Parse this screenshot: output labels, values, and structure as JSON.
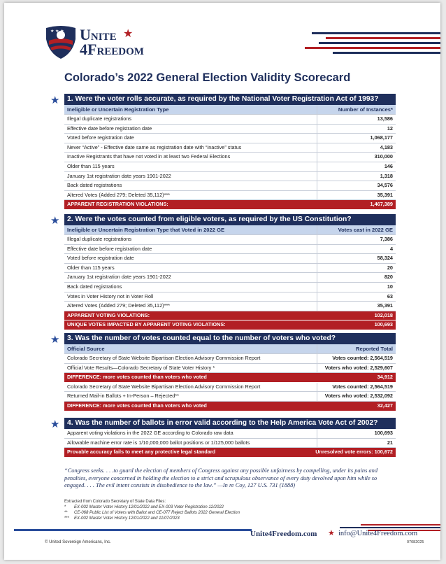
{
  "header": {
    "logo_line1": "Unite",
    "logo_line2": "4Freedom",
    "title": "Colorado’s 2022 General Election Validity Scorecard"
  },
  "sections": [
    {
      "question": "1. Were the voter rolls accurate, as required by the National Voter Registration Act of 1993?",
      "columns": [
        "Ineligible or Uncertain Registration Type",
        "Number of Instances*"
      ],
      "groups": [
        {
          "rows": [
            [
              "Illegal duplicate registrations",
              "13,586"
            ],
            [
              "Effective date before registration date",
              "12"
            ],
            [
              "Voted before registration date",
              "1,068,177"
            ],
            [
              "Never “Active” - Effective date same as registration date with “Inactive” status",
              "4,183"
            ],
            [
              "Inactive Registrants that have not voted in at least two Federal Elections",
              "310,000"
            ],
            [
              "Older than 115 years",
              "146"
            ],
            [
              "January 1st registration date years 1901-2022",
              "1,318"
            ],
            [
              "Back dated registrations",
              "34,576"
            ],
            [
              "Altered Votes (Added 279; Deleted 35,112)***",
              "35,391"
            ]
          ],
          "totals": [
            [
              "APPARENT REGISTRATION VIOLATIONS:",
              "1,467,389"
            ]
          ]
        }
      ]
    },
    {
      "question": "2. Were the votes counted from eligible voters, as required by the US Constitution?",
      "columns": [
        "Ineligible or Uncertain Registration Type that Voted in 2022 GE",
        "Votes cast in 2022 GE"
      ],
      "groups": [
        {
          "rows": [
            [
              "Illegal duplicate registrations",
              "7,386"
            ],
            [
              "Effective date before registration date",
              "4"
            ],
            [
              "Voted before registration date",
              "58,324"
            ],
            [
              "Older than 115 years",
              "20"
            ],
            [
              "January 1st registration date years 1901-2022",
              "820"
            ],
            [
              "Back dated registrations",
              "10"
            ],
            [
              "Votes in Voter History not in Voter Roll",
              "63"
            ],
            [
              "Altered Votes (Added 279; Deleted 35,112)***",
              "35,391"
            ]
          ],
          "totals": [
            [
              "APPARENT VOTING VIOLATIONS:",
              "102,018"
            ],
            [
              "UNIQUE VOTES IMPACTED BY APPARENT VOTING VIOLATIONS:",
              "100,693"
            ]
          ]
        }
      ]
    },
    {
      "question": "3. Was the number of votes counted equal to the number of voters who voted?",
      "columns": [
        "Official Source",
        "Reported Total"
      ],
      "groups": [
        {
          "rows": [
            [
              "Colorado Secretary of State Website Bipartisan Election Advisory Commission Report",
              "Votes counted: 2,564,519"
            ],
            [
              "Official Vote Results—Colorado Secretary of State Voter History *",
              "Voters who voted: 2,529,607"
            ]
          ],
          "totals": [
            [
              "DIFFERENCE: more votes counted than voters who voted",
              "34,912"
            ]
          ]
        },
        {
          "rows": [
            [
              "Colorado Secretary of State Website Bipartisan Election Advisory Commission Report",
              "Votes counted: 2,564,519"
            ],
            [
              "Returned Mail-in Ballots + In-Person – Rejected**",
              "Voters who voted: 2,532,092"
            ]
          ],
          "totals": [
            [
              "DIFFERENCE: more votes counted than voters who voted",
              "32,427"
            ]
          ]
        }
      ]
    },
    {
      "question": "4. Was the number of ballots in error valid according to the Help America Vote Act of 2002?",
      "groups": [
        {
          "rows": [
            [
              "Apparent voting violations in the 2022 GE according to Colorado raw data",
              "100,693"
            ],
            [
              "Allowable machine error rate is 1/10,000,000 ballot positions or 1/125,000 ballots",
              "21"
            ]
          ],
          "totals": [
            [
              "Provable accuracy fails to meet any protective legal standard",
              "Unresolved vote errors: 100,672"
            ]
          ]
        }
      ]
    }
  ],
  "quote": "“Congress seeks. . . .to guard the election of members of Congress against any possible unfairness by compelling, under its pains and penalties, everyone concerned in holding the election to a strict and scrupulous observance of every duty devolved upon him while so engaged. . . . The evil intent consists in disobedience to the law.” —In re Coy, 127 U.S. 731 (1888)",
  "footnotes": {
    "intro": "Extracted from Colorado Secretary of State Data Files:",
    "items": [
      [
        "*",
        "EX-002 Master Voter History 12/01/2022 and EX-003 Voter Registration 12/2022"
      ],
      [
        "**",
        "CE-068 Public List of Voters with Ballot and CE-077 Reject Ballots 2022 General Election"
      ],
      [
        "***",
        "EX-002 Master Voter History 12/01/2022 and 11/07/2023"
      ]
    ]
  },
  "footer": {
    "website": "Unite4Freedom.com",
    "email": "info@Unite4Freedom.com",
    "copyright": "© United Sovereign Americans, Inc.",
    "code": "07082025"
  }
}
